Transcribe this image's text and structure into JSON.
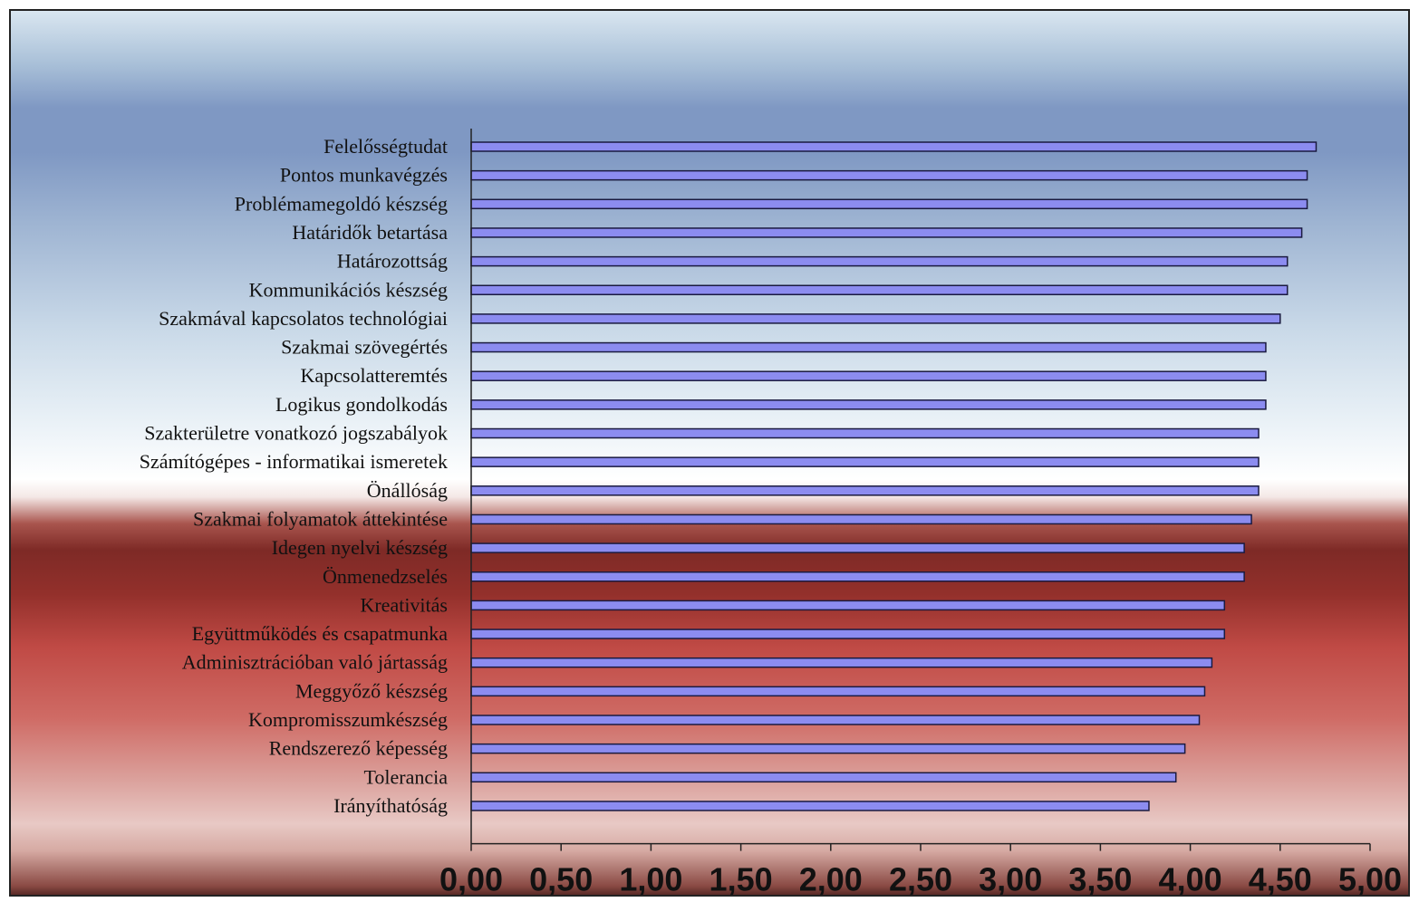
{
  "chart_data": {
    "type": "bar",
    "orientation": "horizontal",
    "categories": [
      "Felelősségtudat",
      "Pontos munkavégzés",
      "Problémamegoldó készség",
      "Határidők betartása",
      "Határozottság",
      "Kommunikációs készség",
      "Szakmával kapcsolatos technológiai",
      "Szakmai szövegértés",
      "Kapcsolatteremtés",
      "Logikus gondolkodás",
      "Szakterületre vonatkozó jogszabályok",
      "Számítógépes - informatikai ismeretek",
      "Önállóság",
      "Szakmai folyamatok áttekintése",
      "Idegen nyelvi készség",
      "Önmenedzselés",
      "Kreativitás",
      "Együttműködés és csapatmunka",
      "Adminisztrációban való jártasság",
      "Meggyőző készség",
      "Kompromisszumkészség",
      "Rendszerező képesség",
      "Tolerancia",
      "Irányíthatóság"
    ],
    "values": [
      4.7,
      4.65,
      4.65,
      4.62,
      4.54,
      4.54,
      4.5,
      4.42,
      4.42,
      4.42,
      4.38,
      4.38,
      4.38,
      4.34,
      4.3,
      4.3,
      4.19,
      4.19,
      4.12,
      4.08,
      4.05,
      3.97,
      3.92,
      3.77
    ],
    "xlim": [
      0,
      5
    ],
    "ticks": [
      "0,00",
      "0,50",
      "1,00",
      "1,50",
      "2,00",
      "2,50",
      "3,00",
      "3,50",
      "4,00",
      "4,50",
      "5,00"
    ],
    "tick_values": [
      0,
      0.5,
      1,
      1.5,
      2,
      2.5,
      3,
      3.5,
      4,
      4.5,
      5
    ],
    "bar_color": "#8c8cf0",
    "bar_edge_color": "#1a1a40",
    "title": "",
    "xlabel": "",
    "ylabel": ""
  }
}
